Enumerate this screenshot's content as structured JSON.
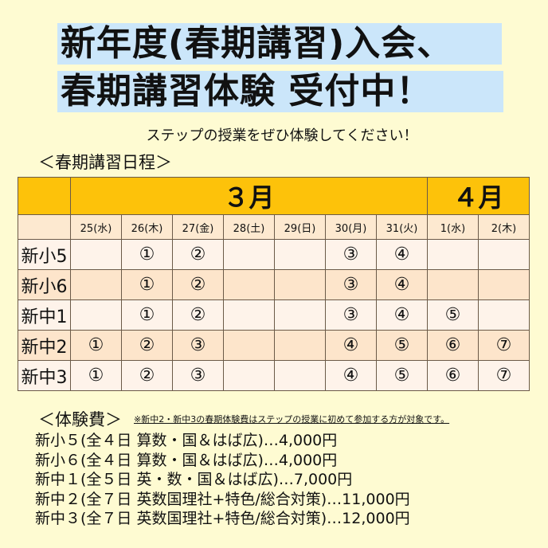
{
  "title": {
    "line1": "新年度(春期講習)入会、",
    "line2": "春期講習体験  受付中！",
    "highlight_color": "#cbe6fa"
  },
  "subtitle": "ステップの授業をぜひ体験してください！",
  "schedule": {
    "heading": "＜春期講習日程＞",
    "months": [
      "３月",
      "４月"
    ],
    "days": [
      "25(水)",
      "26(木)",
      "27(金)",
      "28(土)",
      "29(日)",
      "30(月)",
      "31(火)",
      "1(水)",
      "2(木)"
    ],
    "rows": [
      {
        "grade": "新小5",
        "cells": [
          "",
          "①",
          "②",
          "",
          "",
          "③",
          "④",
          "",
          ""
        ]
      },
      {
        "grade": "新小6",
        "cells": [
          "",
          "①",
          "②",
          "",
          "",
          "③",
          "④",
          "",
          ""
        ]
      },
      {
        "grade": "新中1",
        "cells": [
          "",
          "①",
          "②",
          "",
          "",
          "③",
          "④",
          "⑤",
          ""
        ]
      },
      {
        "grade": "新中2",
        "cells": [
          "①",
          "②",
          "③",
          "",
          "",
          "④",
          "⑤",
          "⑥",
          "⑦"
        ]
      },
      {
        "grade": "新中3",
        "cells": [
          "①",
          "②",
          "③",
          "",
          "",
          "④",
          "⑤",
          "⑥",
          "⑦"
        ]
      }
    ],
    "header_color": "#fdc20a"
  },
  "fees": {
    "heading": "＜体験費＞",
    "note": "※新中2・新中3の春期体験費はステップの授業に初めて参加する方が対象です。",
    "items": [
      "新小５(全４日 算数・国＆はば広)…4,000円",
      "新小６(全４日 算数・国＆はば広)…4,000円",
      "新中１(全５日 英・数・国＆はば広)…7,000円",
      "新中２(全７日 英数国理社+特色/総合対策)…11,000円",
      "新中３(全７日 英数国理社+特色/総合対策)…12,000円"
    ]
  }
}
